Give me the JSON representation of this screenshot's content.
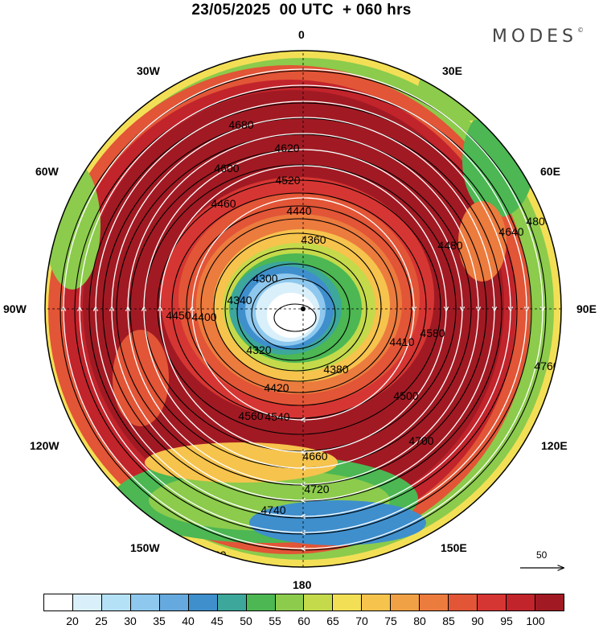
{
  "title": "23/05/2025  00 UTC  + 060 hrs",
  "brand": "MODES",
  "brand_mark": "©",
  "longitude_labels": {
    "n": "0",
    "ne1": "30E",
    "ne2": "60E",
    "e": "90E",
    "se1": "120E",
    "se2": "150E",
    "s": "180",
    "sw2": "150W",
    "sw1": "120W",
    "w": "90W",
    "nw2": "60W",
    "nw1": "30W"
  },
  "scale_label": "50",
  "contour_labels": [
    "4300",
    "4320",
    "4340",
    "4360",
    "4380",
    "4400",
    "4410",
    "4420",
    "4440",
    "4450",
    "4460",
    "4480",
    "4500",
    "4520",
    "4540",
    "4560",
    "4580",
    "4600",
    "4620",
    "4640",
    "4660",
    "4680",
    "4700",
    "4720",
    "4740",
    "4760",
    "4780",
    "4800"
  ],
  "colorbar": {
    "colors": [
      "#ffffff",
      "#d9f0fb",
      "#b5e1f7",
      "#8ec8ee",
      "#66a9de",
      "#3f8fcd",
      "#3ca79a",
      "#4cb753",
      "#8ccb4c",
      "#c4da4b",
      "#f3df56",
      "#f6c34d",
      "#f1a145",
      "#ec7b3e",
      "#e25536",
      "#d63633",
      "#c2242c",
      "#a11a23"
    ],
    "ticks": [
      "20",
      "25",
      "30",
      "35",
      "40",
      "45",
      "50",
      "55",
      "60",
      "65",
      "70",
      "75",
      "80",
      "85",
      "90",
      "95",
      "100"
    ]
  }
}
